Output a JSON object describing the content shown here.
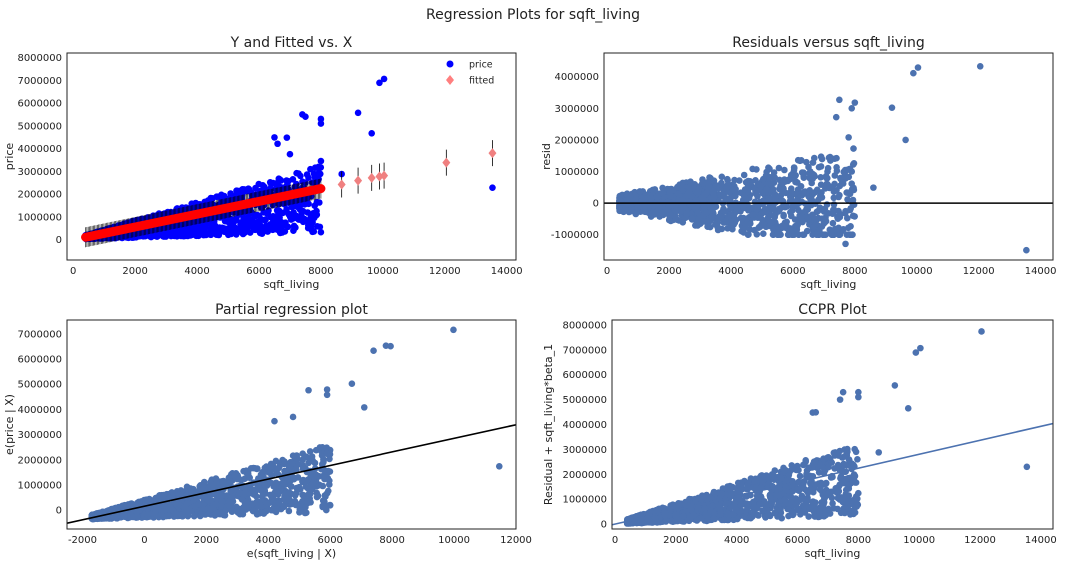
{
  "suptitle": "Regression Plots for sqft_living",
  "chart_data": [
    {
      "type": "scatter",
      "title": "Y and Fitted vs. X",
      "xlabel": "sqft_living",
      "ylabel": "price",
      "xlim": [
        -200,
        14300
      ],
      "ylim": [
        -900000,
        8200000
      ],
      "xticks": [
        0,
        2000,
        4000,
        6000,
        8000,
        10000,
        12000,
        14000
      ],
      "yticks": [
        0,
        1000000,
        2000000,
        3000000,
        4000000,
        5000000,
        6000000,
        7000000,
        8000000
      ],
      "grid": false,
      "legend": {
        "placement": "top-right",
        "entries": [
          {
            "label": "price",
            "color": "#0000ff",
            "marker": "circle"
          },
          {
            "label": "fitted",
            "color": "#ff7f7f",
            "marker": "diamond"
          }
        ]
      },
      "series": [
        {
          "name": "price",
          "color": "#0000ff",
          "kind": "cloud",
          "x_range": [
            400,
            8000
          ],
          "y_range": [
            80000,
            3700000
          ]
        },
        {
          "name": "price",
          "color": "#0000ff",
          "kind": "points",
          "x": [
            8000,
            8000,
            7500,
            7400,
            9200,
            9640,
            9890,
            10040,
            13540,
            6900,
            6500,
            6600,
            7000,
            8000,
            8670
          ],
          "y": [
            5300000,
            5100000,
            5400000,
            5500000,
            5570000,
            4670000,
            6890000,
            7060000,
            2280000,
            4480000,
            4490000,
            4210000,
            3750000,
            3450000,
            2880000
          ]
        },
        {
          "name": "fitted",
          "color": "#ff0000",
          "kind": "line",
          "x": [
            400,
            8000
          ],
          "y": [
            100000,
            2240000
          ]
        },
        {
          "name": "fitted",
          "color": "#f08080",
          "kind": "points",
          "x": [
            8670,
            9200,
            9640,
            9890,
            10040,
            12050,
            13540
          ],
          "y": [
            2420000,
            2590000,
            2710000,
            2770000,
            2810000,
            3380000,
            3800000
          ]
        }
      ]
    },
    {
      "type": "scatter",
      "title": "Residuals versus sqft_living",
      "xlabel": "sqft_living",
      "ylabel": "resid",
      "xlim": [
        -100,
        14400
      ],
      "ylim": [
        -1800000,
        4750000
      ],
      "xticks": [
        0,
        2000,
        4000,
        6000,
        8000,
        10000,
        12000,
        14000
      ],
      "yticks": [
        -1000000,
        0,
        1000000,
        2000000,
        3000000,
        4000000
      ],
      "grid": false,
      "series": [
        {
          "name": "",
          "color": "#4c72b0",
          "kind": "cloud",
          "x_range": [
            400,
            8000
          ],
          "y_range": [
            -1000000,
            2000000
          ]
        },
        {
          "name": "",
          "color": "#4c72b0",
          "kind": "points",
          "x": [
            7500,
            7400,
            7900,
            8000,
            7800,
            9200,
            9640,
            9890,
            10040,
            12050,
            13540,
            8600,
            7900,
            7700
          ],
          "y": [
            3270000,
            2720000,
            3000000,
            3180000,
            2080000,
            3020000,
            2000000,
            4110000,
            4290000,
            4330000,
            -1490000,
            490000,
            1000000,
            -1290000
          ]
        },
        {
          "name": "",
          "color": "#000000",
          "kind": "line",
          "x": [
            -100,
            14400
          ],
          "y": [
            0,
            0
          ]
        }
      ]
    },
    {
      "type": "scatter",
      "title": "Partial regression plot",
      "xlabel": "e(sqft_living | X)",
      "ylabel": "e(price | X)",
      "xlim": [
        -2500,
        12000
      ],
      "ylim": [
        -750000,
        7550000
      ],
      "xticks": [
        -2000,
        0,
        2000,
        4000,
        6000,
        8000,
        10000,
        12000
      ],
      "yticks": [
        0,
        1000000,
        2000000,
        3000000,
        4000000,
        5000000,
        6000000,
        7000000
      ],
      "grid": false,
      "series": [
        {
          "name": "",
          "color": "#4c72b0",
          "kind": "cloud",
          "x_range": [
            -1700,
            6000
          ],
          "y_range": [
            -300000,
            3000000
          ]
        },
        {
          "name": "",
          "color": "#4c72b0",
          "kind": "points",
          "x": [
            5300,
            5900,
            5900,
            6700,
            7100,
            7400,
            7800,
            7950,
            9980,
            11460,
            4800,
            4200
          ],
          "y": [
            4760000,
            4790000,
            4580000,
            5020000,
            4080000,
            6330000,
            6530000,
            6510000,
            7160000,
            1740000,
            3700000,
            3530000
          ]
        },
        {
          "name": "",
          "color": "#000000",
          "kind": "line",
          "x": [
            -2500,
            12000
          ],
          "y": [
            -520000,
            3390000
          ]
        }
      ]
    },
    {
      "type": "scatter",
      "title": "CCPR Plot",
      "xlabel": "sqft_living",
      "ylabel": "Residual + sqft_living*beta_1",
      "xlim": [
        -100,
        14400
      ],
      "ylim": [
        -200000,
        8200000
      ],
      "xticks": [
        0,
        2000,
        4000,
        6000,
        8000,
        10000,
        12000,
        14000
      ],
      "yticks": [
        0,
        1000000,
        2000000,
        3000000,
        4000000,
        5000000,
        6000000,
        7000000,
        8000000
      ],
      "grid": false,
      "series": [
        {
          "name": "",
          "color": "#4c72b0",
          "kind": "cloud",
          "x_range": [
            400,
            8000
          ],
          "y_range": [
            80000,
            3700000
          ]
        },
        {
          "name": "",
          "color": "#4c72b0",
          "kind": "points",
          "x": [
            7500,
            7400,
            8000,
            8000,
            9200,
            9640,
            9890,
            10040,
            12050,
            13540,
            8670,
            6500,
            6600
          ],
          "y": [
            5300000,
            5000000,
            5300000,
            5100000,
            5570000,
            4650000,
            6890000,
            7070000,
            7740000,
            2300000,
            2880000,
            4480000,
            4490000
          ]
        },
        {
          "name": "",
          "color": "#4c72b0",
          "kind": "line",
          "x": [
            -100,
            14400
          ],
          "y": [
            -30000,
            4040000
          ]
        }
      ]
    }
  ]
}
